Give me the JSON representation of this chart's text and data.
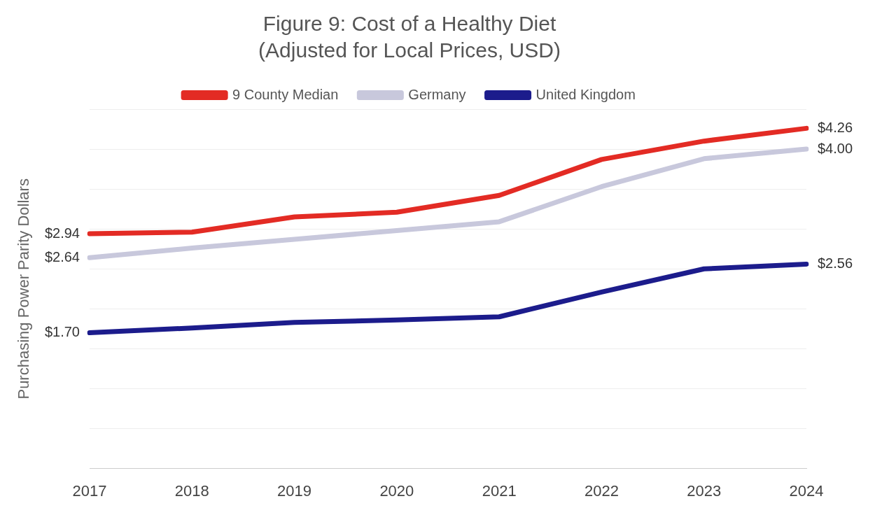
{
  "chart_data": {
    "type": "line",
    "title": "Figure 9: Cost of a Healthy Diet",
    "subtitle": "(Adjusted for Local Prices, USD)",
    "ylabel": "Purchasing Power Parity Dollars",
    "categories": [
      "2017",
      "2018",
      "2019",
      "2020",
      "2021",
      "2022",
      "2023",
      "2024"
    ],
    "series": [
      {
        "name": "9 County Median",
        "color": "#e32b24",
        "values": [
          2.94,
          2.96,
          3.15,
          3.21,
          3.42,
          3.87,
          4.1,
          4.26
        ],
        "value_labels": [
          "$2.94",
          null,
          null,
          null,
          null,
          null,
          null,
          "$4.26"
        ]
      },
      {
        "name": "Germany",
        "color": "#c8c8dc",
        "values": [
          2.64,
          2.76,
          2.87,
          2.98,
          3.09,
          3.53,
          3.88,
          4.0
        ],
        "value_labels": [
          "$2.64",
          null,
          null,
          null,
          null,
          null,
          null,
          "$4.00"
        ]
      },
      {
        "name": "United Kingdom",
        "color": "#1c1c8c",
        "values": [
          1.7,
          1.76,
          1.83,
          1.86,
          1.9,
          2.21,
          2.5,
          2.56
        ],
        "value_labels": [
          "$1.70",
          null,
          null,
          null,
          null,
          null,
          null,
          "$2.56"
        ]
      }
    ],
    "ylim": [
      0,
      4.5
    ],
    "yticks": [
      {
        "value": 0,
        "label": null
      },
      {
        "value": 0.5,
        "label": null
      },
      {
        "value": 1,
        "label": null
      },
      {
        "value": 1.5,
        "label": null
      },
      {
        "value": 2,
        "label": null
      },
      {
        "value": 2.5,
        "label": null
      },
      {
        "value": 3,
        "label": null
      },
      {
        "value": 3.5,
        "label": null
      },
      {
        "value": 4,
        "label": null
      },
      {
        "value": 4.5,
        "label": null
      }
    ],
    "grid": "y",
    "legend": "top",
    "tick_labels": "x",
    "marker": "none",
    "line_style": "solid"
  }
}
